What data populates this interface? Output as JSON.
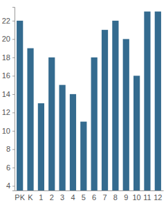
{
  "chart_data": {
    "type": "bar",
    "categories": [
      "PK",
      "K",
      "1",
      "2",
      "3",
      "4",
      "5",
      "6",
      "7",
      "8",
      "9",
      "10",
      "11",
      "12"
    ],
    "values": [
      22,
      19,
      13,
      18,
      15,
      14,
      11,
      18,
      21,
      22,
      20,
      16,
      23,
      23
    ],
    "color": "#346b8f",
    "ylim": [
      3.5,
      23.5
    ],
    "yticks": [
      4,
      6,
      8,
      10,
      12,
      14,
      16,
      18,
      20,
      22
    ],
    "grid": false
  }
}
